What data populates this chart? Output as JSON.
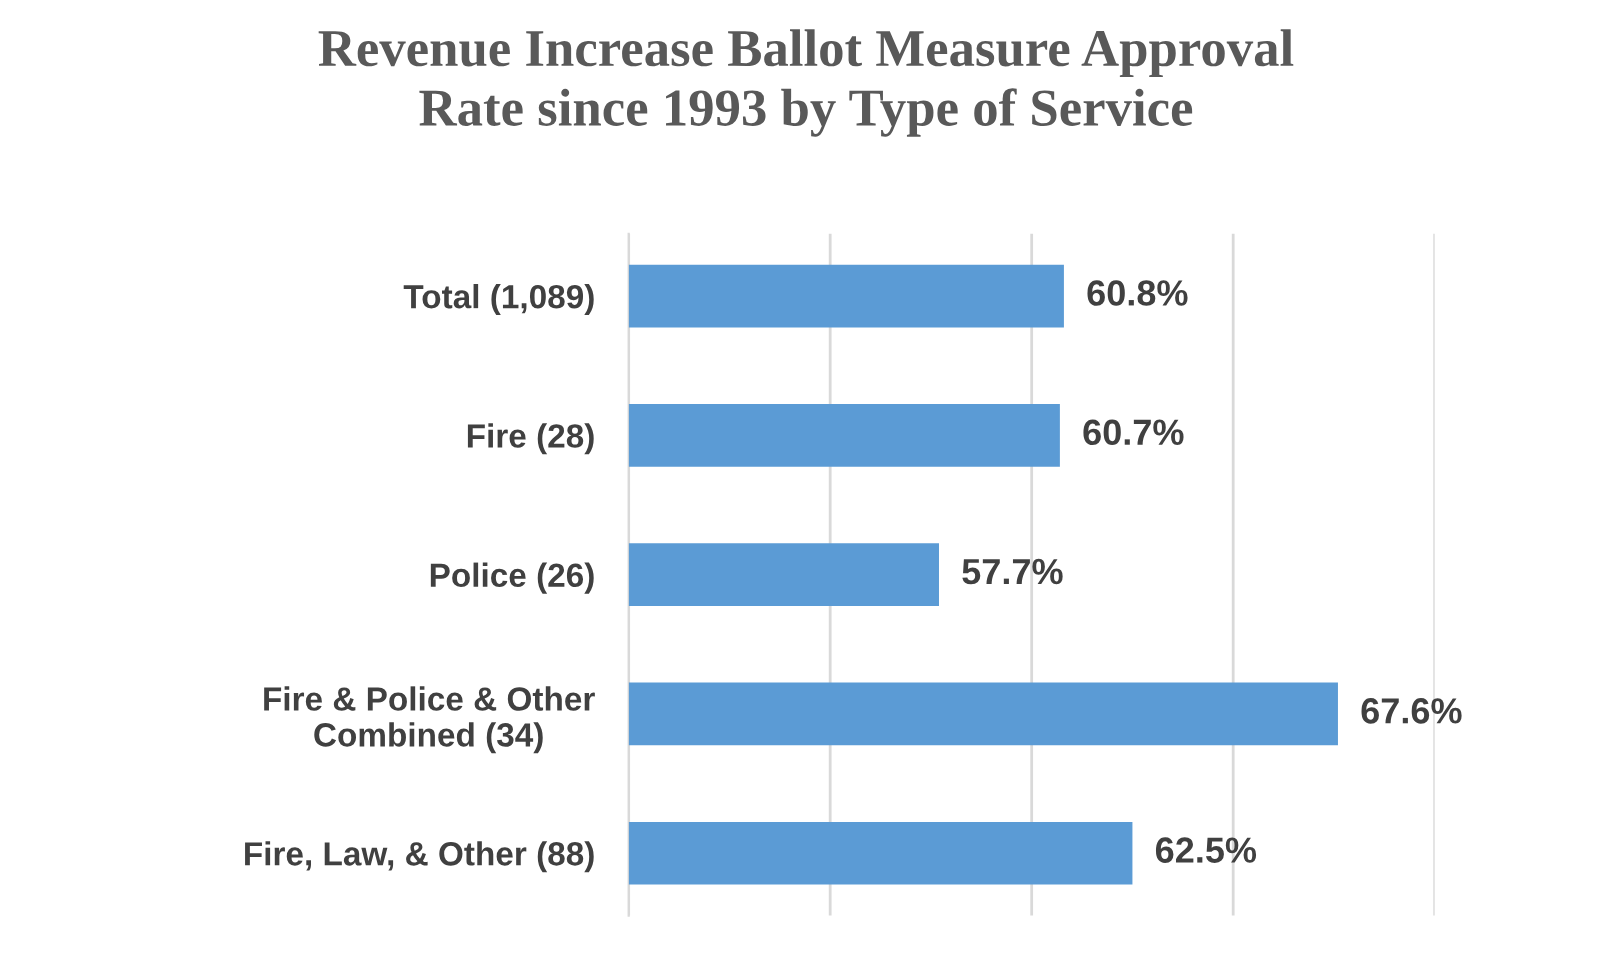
{
  "chart_data": {
    "type": "bar",
    "orientation": "horizontal",
    "title": "Revenue Increase Ballot Measure Approval\nRate since 1993 by Type of Service",
    "categories": [
      "Total (1,089)",
      "Fire (28)",
      "Police (26)",
      "Fire & Police & Other\nCombined (34)",
      "Fire, Law, & Other (88)"
    ],
    "values": [
      60.8,
      60.7,
      57.7,
      67.6,
      62.5
    ],
    "value_labels": [
      "60.8%",
      "60.7%",
      "57.7%",
      "67.6%",
      "62.5%"
    ],
    "color": "#5b9bd5",
    "xlim": [
      50,
      70
    ],
    "xticks": [
      {
        "value": 50,
        "label": null
      },
      {
        "value": 55,
        "label": null
      },
      {
        "value": 60,
        "label": null
      },
      {
        "value": 65,
        "label": null
      },
      {
        "value": 70,
        "label": null
      }
    ],
    "tick_labels": "y",
    "grid": "x"
  }
}
